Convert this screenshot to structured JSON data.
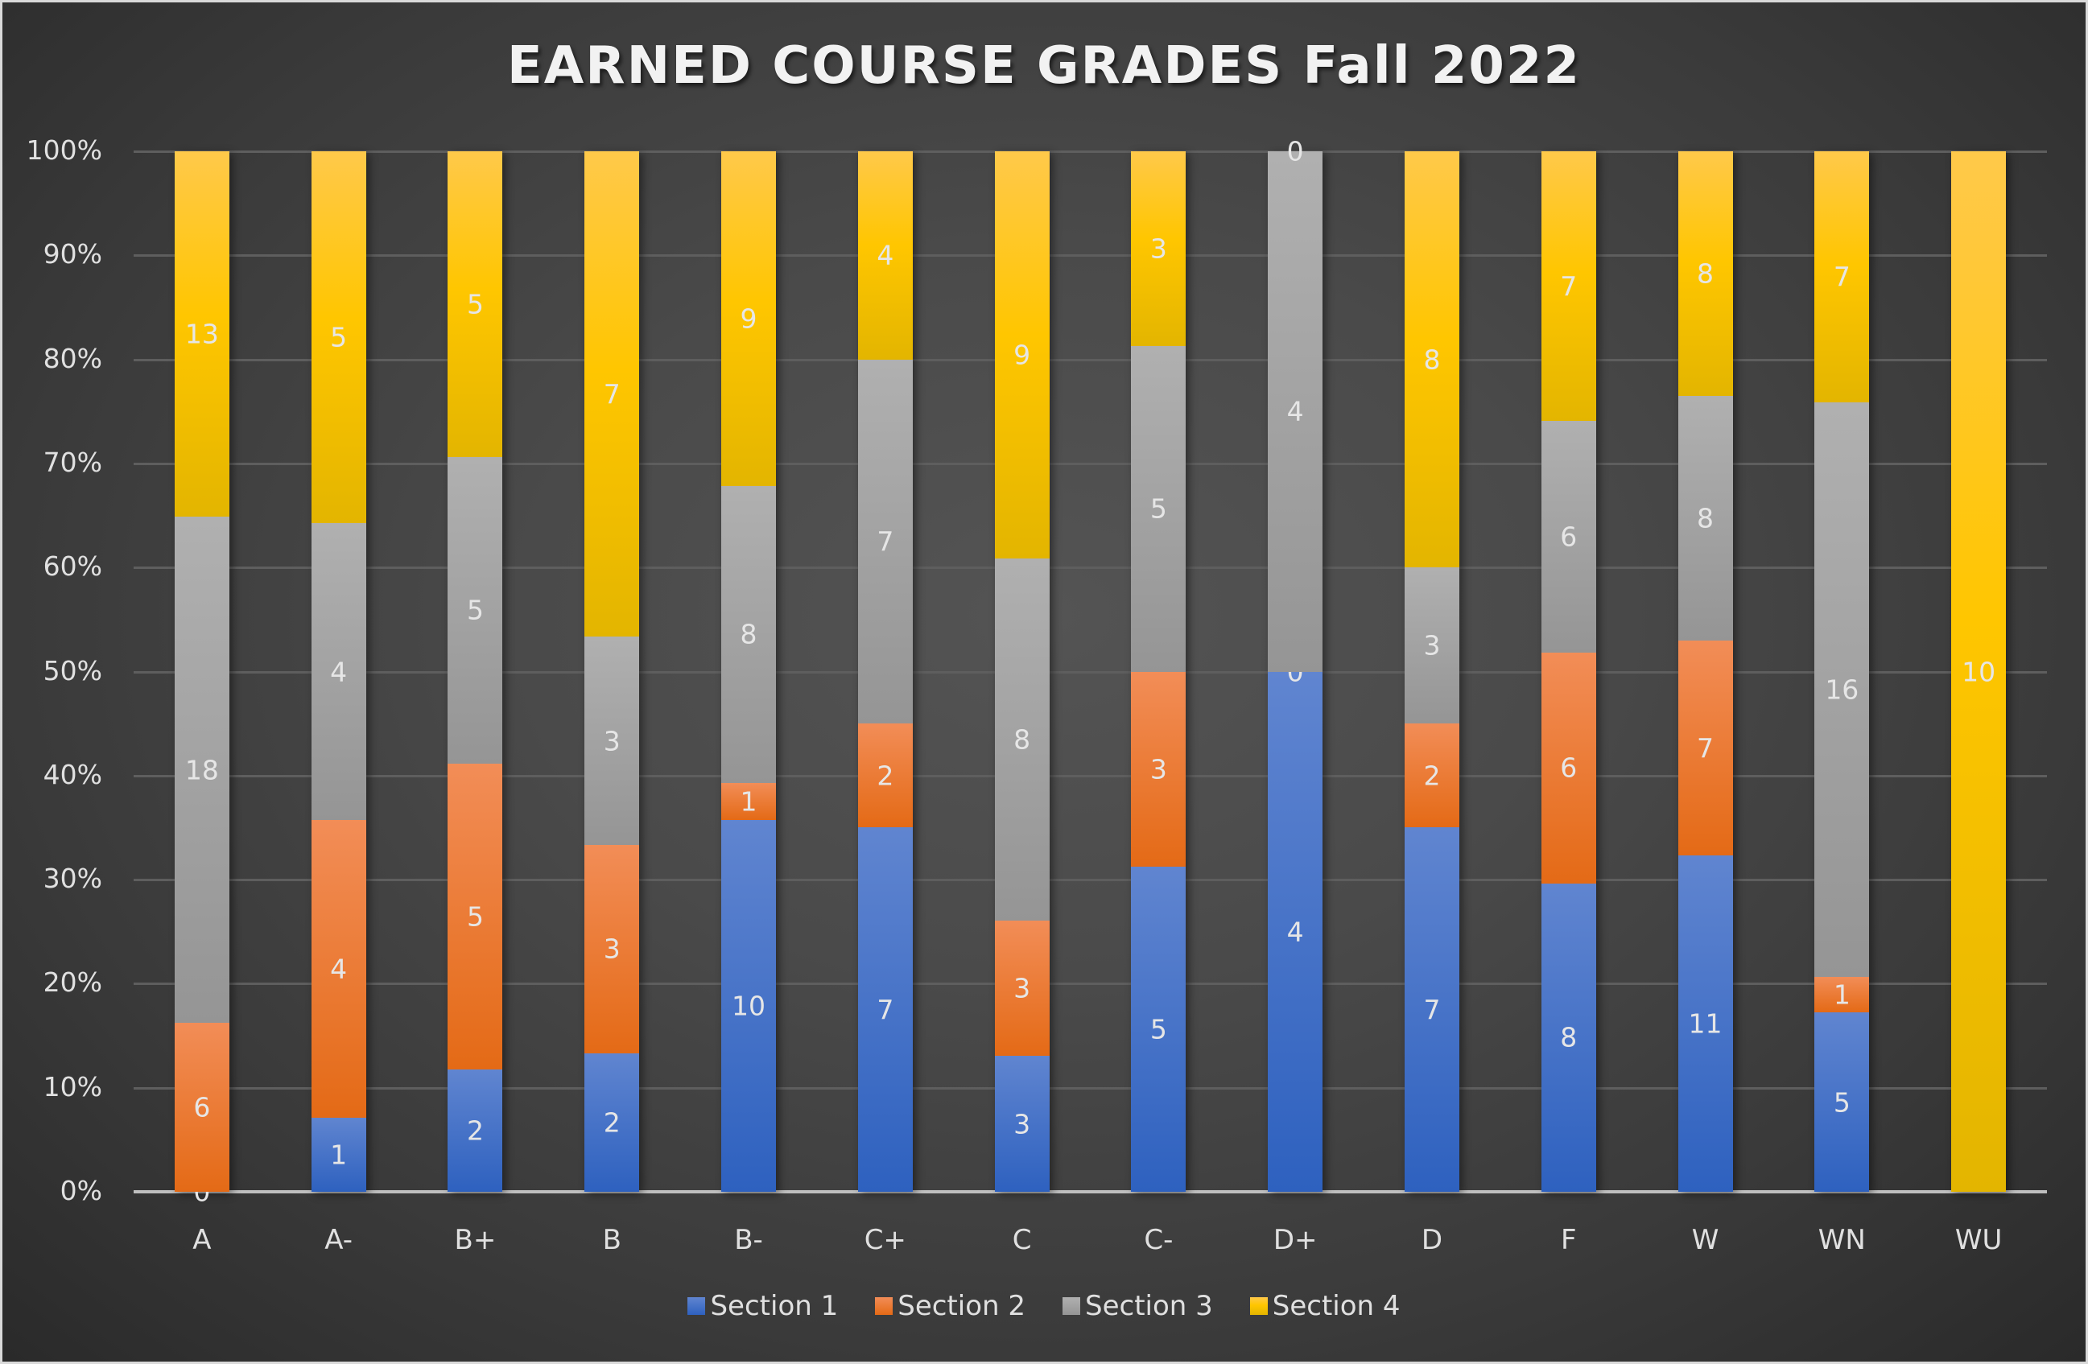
{
  "chart_data": {
    "type": "bar",
    "stacked": "percent",
    "title": "EARNED COURSE GRADES Fall 2022",
    "xlabel": "",
    "ylabel": "",
    "ylim": [
      0,
      100
    ],
    "y_ticks": [
      "0%",
      "10%",
      "20%",
      "30%",
      "40%",
      "50%",
      "60%",
      "70%",
      "80%",
      "90%",
      "100%"
    ],
    "grid": true,
    "legend_position": "bottom",
    "categories": [
      "A",
      "A-",
      "B+",
      "B",
      "B-",
      "C+",
      "C",
      "C-",
      "D+",
      "D",
      "F",
      "W",
      "WN",
      "WU"
    ],
    "series": [
      {
        "name": "Section 1",
        "color": "#4472C4",
        "values": [
          0,
          1,
          2,
          2,
          10,
          7,
          3,
          5,
          4,
          7,
          8,
          11,
          5,
          0
        ]
      },
      {
        "name": "Section 2",
        "color": "#ED7D31",
        "values": [
          6,
          4,
          5,
          3,
          1,
          2,
          3,
          3,
          0,
          2,
          6,
          7,
          1,
          0
        ]
      },
      {
        "name": "Section 3",
        "color": "#A5A5A5",
        "values": [
          18,
          4,
          5,
          3,
          8,
          7,
          8,
          5,
          4,
          3,
          6,
          8,
          16,
          0
        ]
      },
      {
        "name": "Section 4",
        "color": "#FFC000",
        "values": [
          13,
          5,
          5,
          7,
          9,
          4,
          9,
          3,
          0,
          8,
          7,
          8,
          7,
          10
        ]
      }
    ],
    "data_labels_shown": true,
    "hidden_labels": [
      [
        13,
        0
      ],
      [
        13,
        1
      ],
      [
        13,
        2
      ]
    ]
  },
  "legend": {
    "items": [
      {
        "label": "Section 1",
        "color": "#4472C4"
      },
      {
        "label": "Section 2",
        "color": "#ED7D31"
      },
      {
        "label": "Section 3",
        "color": "#A5A5A5"
      },
      {
        "label": "Section 4",
        "color": "#FFC000"
      }
    ]
  }
}
